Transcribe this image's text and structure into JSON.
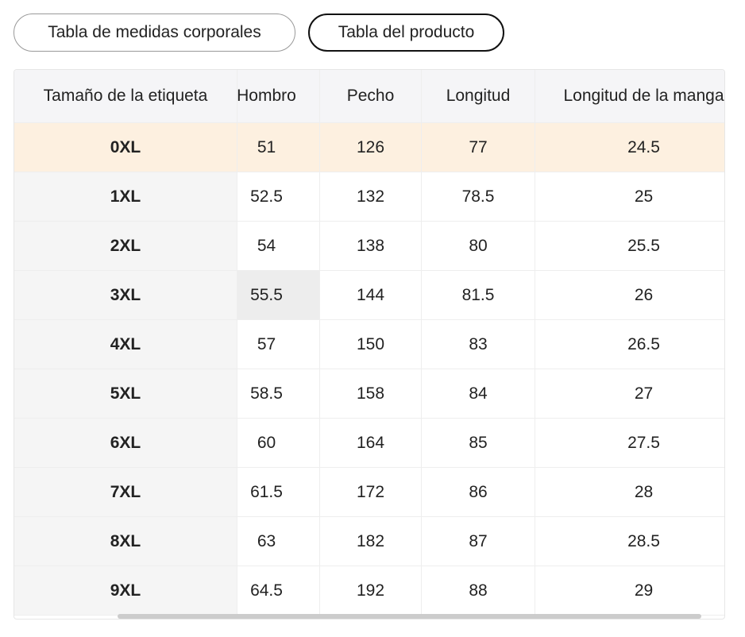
{
  "tabs": [
    {
      "label": "Tabla de medidas corporales",
      "active": false
    },
    {
      "label": "Tabla del producto",
      "active": true
    }
  ],
  "table": {
    "headers": [
      "Tamaño de la etiqueta",
      "Hombro",
      "Pecho",
      "Longitud",
      "Longitud de la manga"
    ],
    "rows": [
      [
        "0XL",
        "51",
        "126",
        "77",
        "24.5"
      ],
      [
        "1XL",
        "52.5",
        "132",
        "78.5",
        "25"
      ],
      [
        "2XL",
        "54",
        "138",
        "80",
        "25.5"
      ],
      [
        "3XL",
        "55.5",
        "144",
        "81.5",
        "26"
      ],
      [
        "4XL",
        "57",
        "150",
        "83",
        "26.5"
      ],
      [
        "5XL",
        "58.5",
        "158",
        "84",
        "27"
      ],
      [
        "6XL",
        "60",
        "164",
        "85",
        "27.5"
      ],
      [
        "7XL",
        "61.5",
        "172",
        "86",
        "28"
      ],
      [
        "8XL",
        "63",
        "182",
        "87",
        "28.5"
      ],
      [
        "9XL",
        "64.5",
        "192",
        "88",
        "29"
      ]
    ]
  }
}
